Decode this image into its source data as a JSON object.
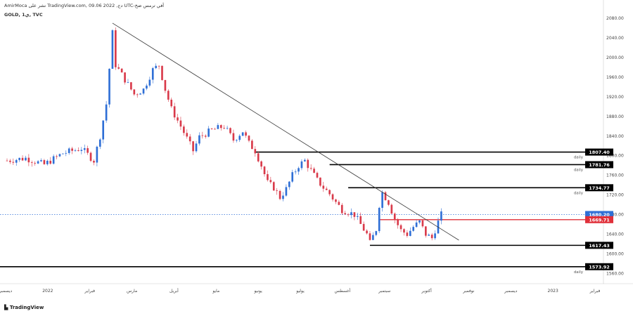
{
  "header": {
    "publisher_line": "AmirMoca نشر على TradingView.com, 09.06 2022 ,دج UTC-أفي ترمس ضخ",
    "symbol_line": "GOLD, 1ي, TVC"
  },
  "footer": {
    "brand": "TradingView"
  },
  "colors": {
    "up": "#2f6fd6",
    "down": "#d93a4a",
    "line": "#000000",
    "price_tag": "#2f6fd6",
    "ma_tag": "#e0303a"
  },
  "chart_data": {
    "type": "candlestick",
    "ylim": [
      1545,
      2100
    ],
    "y_ticks": [
      1560,
      1600,
      1640,
      1680,
      1720,
      1760,
      1800,
      1840,
      1880,
      1920,
      1960,
      2000,
      2040,
      2080
    ],
    "x_labels": [
      "ديسمبر",
      "2022",
      "فبراير",
      "مارس",
      "أبريل",
      "مايو",
      "يونيو",
      "يوليو",
      "أغسطس",
      "سبتمبر",
      "أكتوبر",
      "نوفمبر",
      "ديسمبر",
      "2023",
      "فبراير"
    ],
    "horizontal_levels": [
      {
        "value": 1807.4,
        "label": "1807.40",
        "note": "daily",
        "style": "black"
      },
      {
        "value": 1781.76,
        "label": "1781.76",
        "note": "daily",
        "style": "black"
      },
      {
        "value": 1734.77,
        "label": "1734.77",
        "note": "daily",
        "style": "black"
      },
      {
        "value": 1680.2,
        "label": "1680.20",
        "note": "",
        "style": "blue-dotted"
      },
      {
        "value": 1669.71,
        "label": "1669.71",
        "note": "",
        "style": "red"
      },
      {
        "value": 1617.43,
        "label": "1617.43",
        "note": "",
        "style": "black"
      },
      {
        "value": 1573.92,
        "label": "1573.92",
        "note": "daily",
        "style": "black"
      }
    ],
    "trendline": {
      "from": {
        "date_index": 34,
        "value": 2070
      },
      "to": {
        "date_index": 123,
        "value": 1628
      }
    },
    "current_price": 1680.2
  }
}
